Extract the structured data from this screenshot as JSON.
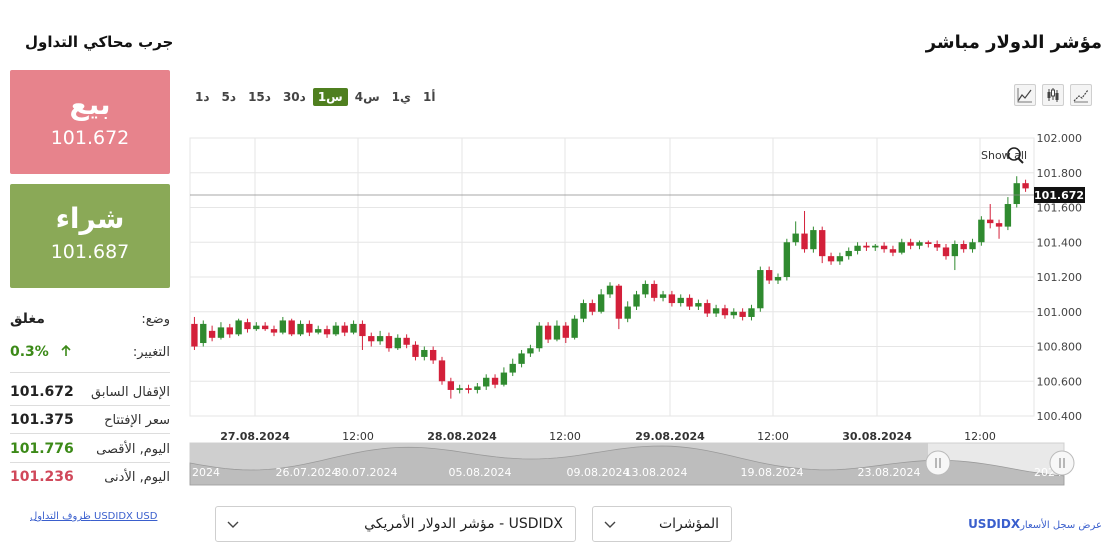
{
  "page_title": "مؤشر الدولار مباشر",
  "side_title": "جرب محاكي التداول",
  "sell": {
    "label": "بيع",
    "price": "101.672"
  },
  "buy": {
    "label": "شراء",
    "price": "101.687"
  },
  "stats": {
    "status_label": "وضع:",
    "status_value": "مغلق",
    "change_label": "التغيير:",
    "change_value": "0.3%",
    "prev_close_label": "الإقفال السابق",
    "prev_close_value": "101.672",
    "open_label": "سعر الإفتتاح",
    "open_value": "101.375",
    "high_label": "اليوم, الأقصى",
    "high_value": "101.776",
    "low_label": "اليوم, الأدنى",
    "low_value": "101.236"
  },
  "terms_link": {
    "symbol": "USDIDX USD",
    "text": "ظروف التداول"
  },
  "timeframes": [
    {
      "label": "1د",
      "active": false
    },
    {
      "label": "5د",
      "active": false
    },
    {
      "label": "15د",
      "active": false
    },
    {
      "label": "30د",
      "active": false
    },
    {
      "label": "1س",
      "active": true
    },
    {
      "label": "4س",
      "active": false
    },
    {
      "label": "1ي",
      "active": false
    },
    {
      "label": "1أ",
      "active": false
    }
  ],
  "tool_icons": [
    "line-chart-icon",
    "candlestick-icon",
    "bar-chart-icon"
  ],
  "chart": {
    "show_all": "Show all",
    "current_price_label": "101.672",
    "y_ticks": [
      "102.000",
      "101.800",
      "101.600",
      "101.400",
      "101.200",
      "101.000",
      "100.800",
      "100.600",
      "100.400"
    ],
    "x_ticks": [
      {
        "label": "27.08.2024",
        "bold": true
      },
      {
        "label": "12:00",
        "bold": false
      },
      {
        "label": "28.08.2024",
        "bold": true
      },
      {
        "label": "12:00",
        "bold": false
      },
      {
        "label": "29.08.2024",
        "bold": true
      },
      {
        "label": "12:00",
        "bold": false
      },
      {
        "label": "30.08.2024",
        "bold": true
      },
      {
        "label": "12:00",
        "bold": false
      }
    ],
    "navigator_labels": [
      "2024",
      "26.07.2024",
      "30.07.2024",
      "05.08.2024",
      "09.08.2024",
      "13.08.2024",
      "19.08.2024",
      "23.08.2024",
      "2024"
    ],
    "colors": {
      "up": "#2f8a2f",
      "down": "#d3203a"
    }
  },
  "chart_data": {
    "type": "candlestick",
    "ylim": [
      100.4,
      102.0
    ],
    "candles": [
      [
        100.93,
        100.8,
        100.97,
        100.78
      ],
      [
        100.82,
        100.93,
        100.95,
        100.8
      ],
      [
        100.89,
        100.85,
        100.92,
        100.83
      ],
      [
        100.85,
        100.91,
        100.94,
        100.84
      ],
      [
        100.91,
        100.87,
        100.93,
        100.85
      ],
      [
        100.87,
        100.95,
        100.96,
        100.86
      ],
      [
        100.94,
        100.9,
        100.96,
        100.88
      ],
      [
        100.9,
        100.92,
        100.94,
        100.89
      ],
      [
        100.92,
        100.9,
        100.94,
        100.89
      ],
      [
        100.9,
        100.88,
        100.92,
        100.86
      ],
      [
        100.88,
        100.95,
        100.97,
        100.87
      ],
      [
        100.95,
        100.87,
        100.96,
        100.86
      ],
      [
        100.87,
        100.93,
        100.95,
        100.86
      ],
      [
        100.93,
        100.88,
        100.95,
        100.86
      ],
      [
        100.88,
        100.9,
        100.92,
        100.87
      ],
      [
        100.9,
        100.87,
        100.92,
        100.85
      ],
      [
        100.87,
        100.92,
        100.94,
        100.86
      ],
      [
        100.92,
        100.88,
        100.94,
        100.86
      ],
      [
        100.88,
        100.93,
        100.95,
        100.87
      ],
      [
        100.93,
        100.86,
        100.95,
        100.78
      ],
      [
        100.86,
        100.83,
        100.88,
        100.8
      ],
      [
        100.83,
        100.86,
        100.89,
        100.81
      ],
      [
        100.86,
        100.79,
        100.88,
        100.77
      ],
      [
        100.79,
        100.85,
        100.87,
        100.78
      ],
      [
        100.85,
        100.81,
        100.87,
        100.79
      ],
      [
        100.81,
        100.74,
        100.83,
        100.72
      ],
      [
        100.74,
        100.78,
        100.8,
        100.72
      ],
      [
        100.78,
        100.72,
        100.8,
        100.7
      ],
      [
        100.72,
        100.6,
        100.74,
        100.58
      ],
      [
        100.6,
        100.55,
        100.62,
        100.5
      ],
      [
        100.55,
        100.56,
        100.58,
        100.53
      ],
      [
        100.56,
        100.55,
        100.58,
        100.53
      ],
      [
        100.55,
        100.57,
        100.59,
        100.53
      ],
      [
        100.57,
        100.62,
        100.64,
        100.55
      ],
      [
        100.62,
        100.58,
        100.64,
        100.56
      ],
      [
        100.58,
        100.65,
        100.68,
        100.57
      ],
      [
        100.65,
        100.7,
        100.73,
        100.63
      ],
      [
        100.7,
        100.76,
        100.78,
        100.68
      ],
      [
        100.76,
        100.79,
        100.81,
        100.74
      ],
      [
        100.79,
        100.92,
        100.94,
        100.77
      ],
      [
        100.92,
        100.84,
        100.94,
        100.82
      ],
      [
        100.84,
        100.92,
        100.95,
        100.83
      ],
      [
        100.92,
        100.85,
        100.94,
        100.82
      ],
      [
        100.85,
        100.96,
        100.98,
        100.84
      ],
      [
        100.96,
        101.05,
        101.07,
        100.94
      ],
      [
        101.05,
        101.0,
        101.07,
        100.98
      ],
      [
        101.0,
        101.1,
        101.13,
        100.99
      ],
      [
        101.1,
        101.15,
        101.17,
        101.08
      ],
      [
        101.15,
        100.96,
        101.16,
        100.9
      ],
      [
        100.96,
        101.03,
        101.06,
        100.94
      ],
      [
        101.03,
        101.1,
        101.12,
        101.01
      ],
      [
        101.1,
        101.16,
        101.18,
        101.08
      ],
      [
        101.16,
        101.08,
        101.18,
        101.06
      ],
      [
        101.08,
        101.1,
        101.12,
        101.06
      ],
      [
        101.1,
        101.05,
        101.12,
        101.03
      ],
      [
        101.05,
        101.08,
        101.1,
        101.03
      ],
      [
        101.08,
        101.03,
        101.1,
        101.01
      ],
      [
        101.03,
        101.05,
        101.07,
        101.01
      ],
      [
        101.05,
        100.99,
        101.07,
        100.97
      ],
      [
        100.99,
        101.02,
        101.04,
        100.97
      ],
      [
        101.02,
        100.98,
        101.04,
        100.96
      ],
      [
        100.98,
        101.0,
        101.02,
        100.96
      ],
      [
        101.0,
        100.97,
        101.02,
        100.95
      ],
      [
        100.97,
        101.02,
        101.04,
        100.95
      ],
      [
        101.02,
        101.24,
        101.26,
        101.0
      ],
      [
        101.24,
        101.18,
        101.26,
        101.16
      ],
      [
        101.18,
        101.2,
        101.22,
        101.16
      ],
      [
        101.2,
        101.4,
        101.42,
        101.18
      ],
      [
        101.4,
        101.45,
        101.52,
        101.38
      ],
      [
        101.45,
        101.36,
        101.58,
        101.34
      ],
      [
        101.36,
        101.47,
        101.49,
        101.34
      ],
      [
        101.47,
        101.32,
        101.49,
        101.28
      ],
      [
        101.32,
        101.29,
        101.34,
        101.27
      ],
      [
        101.29,
        101.32,
        101.34,
        101.27
      ],
      [
        101.32,
        101.35,
        101.37,
        101.3
      ],
      [
        101.35,
        101.38,
        101.4,
        101.33
      ],
      [
        101.38,
        101.37,
        101.4,
        101.35
      ],
      [
        101.37,
        101.38,
        101.39,
        101.35
      ],
      [
        101.38,
        101.36,
        101.4,
        101.34
      ],
      [
        101.36,
        101.34,
        101.38,
        101.32
      ],
      [
        101.34,
        101.4,
        101.42,
        101.33
      ],
      [
        101.4,
        101.38,
        101.42,
        101.36
      ],
      [
        101.38,
        101.4,
        101.41,
        101.36
      ],
      [
        101.4,
        101.39,
        101.41,
        101.37
      ],
      [
        101.39,
        101.37,
        101.41,
        101.35
      ],
      [
        101.37,
        101.32,
        101.39,
        101.3
      ],
      [
        101.32,
        101.39,
        101.41,
        101.24
      ],
      [
        101.39,
        101.36,
        101.41,
        101.34
      ],
      [
        101.36,
        101.4,
        101.42,
        101.34
      ],
      [
        101.4,
        101.53,
        101.55,
        101.38
      ],
      [
        101.53,
        101.51,
        101.62,
        101.48
      ],
      [
        101.51,
        101.49,
        101.53,
        101.42
      ],
      [
        101.49,
        101.62,
        101.66,
        101.47
      ],
      [
        101.62,
        101.74,
        101.78,
        101.6
      ],
      [
        101.74,
        101.71,
        101.76,
        101.69
      ]
    ],
    "current_price": 101.672
  },
  "symbol_dropdown": {
    "value": "USDIDX - مؤشر الدولار الأمريكي"
  },
  "indicators_dropdown": {
    "value": "المؤشرات"
  },
  "history_link": {
    "symbol": "USDIDX",
    "text": "عرض سجل الأسعار"
  }
}
